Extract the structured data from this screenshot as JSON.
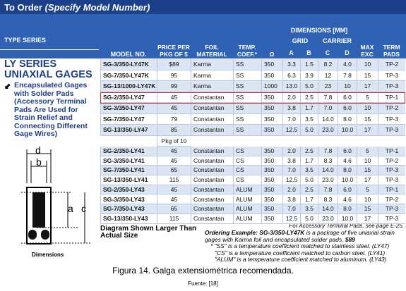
{
  "header": {
    "title": "To Order",
    "subtitle": "(Specify Model Number)"
  },
  "table": {
    "type_series": "TYPE SERIES",
    "columns": {
      "model": "MODEL NO.",
      "price": "PRICE PER PKG OF 5",
      "foil": "FOIL MATERIAL",
      "temp": "TEMP. COEF.*",
      "ohm": "Ω",
      "dimensions": "DIMENSIONS [MM]",
      "grid": "GRID",
      "carrier": "CARRIER",
      "a": "A",
      "b": "B",
      "c": "C",
      "d": "D",
      "max": "MAX EXC",
      "term": "TERM PADS"
    },
    "rows_pkg5": [
      [
        "SG-3/350-LY47K",
        "$89",
        "Karma",
        "SS",
        "350",
        "3.3",
        "1.5",
        "8.2",
        "4.0",
        "10",
        "TP-2"
      ],
      [
        "SG-7/350-LY47K",
        "95",
        "Karma",
        "SS",
        "350",
        "6.3",
        "3.9",
        "12",
        "7.8",
        "15",
        "TP-3"
      ],
      [
        "SG-13/1000-LY47K",
        "99",
        "Karma",
        "SS",
        "1000",
        "13.0",
        "5.0",
        "23",
        "10",
        "17",
        "TP-3"
      ],
      [
        "SG-2/350-LY47",
        "45",
        "Constantan",
        "SS",
        "350",
        "2.0",
        "2.5",
        "7.8",
        "6.0",
        "5",
        "TP-1"
      ],
      [
        "SG-3/350-LY47",
        "45",
        "Constantan",
        "SS",
        "350",
        "3.8",
        "1.7",
        "7.0",
        "6.0",
        "10",
        "TP-2"
      ],
      [
        "SG-7/350-LY47",
        "79",
        "Constantan",
        "SS",
        "350",
        "7.0",
        "3.5",
        "14.0",
        "8.0",
        "15",
        "TP-3"
      ],
      [
        "SG-13/350-LY47",
        "85",
        "Constantan",
        "SS",
        "350",
        "12.5",
        "5.0",
        "23.0",
        "10.0",
        "17",
        "TP-3"
      ]
    ],
    "pkg_note": "Pkg of 10",
    "rows_pkg10": [
      [
        "SG-2/350-LY41",
        "45",
        "Constantan",
        "CS",
        "350",
        "2.0",
        "2.5",
        "7.8",
        "6.0",
        "5",
        "TP-1"
      ],
      [
        "SG-3/350-LY41",
        "45",
        "Constantan",
        "CS",
        "350",
        "3.8",
        "1.7",
        "8.3",
        "4.6",
        "10",
        "TP-2"
      ],
      [
        "SG-7/350-LY41",
        "65",
        "Constantan",
        "CS",
        "350",
        "7.0",
        "3.5",
        "14.0",
        "8.0",
        "15",
        "TP-3"
      ],
      [
        "SG-13/350-LY41",
        "115",
        "Constantan",
        "CS",
        "350",
        "12.5",
        "5.0",
        "23.0",
        "10.0",
        "17",
        "TP-3"
      ],
      [
        "SG-2/350-LY43",
        "45",
        "Constantan",
        "ALUM",
        "350",
        "2.0",
        "2.5",
        "7.8",
        "6.0",
        "5",
        "TP-1"
      ],
      [
        "SG-3/350-LY43",
        "45",
        "Constantan",
        "ALUM",
        "350",
        "3.8",
        "1.7",
        "8.3",
        "4.6",
        "10",
        "TP-2"
      ],
      [
        "SG-7/350-LY43",
        "65",
        "Constantan",
        "ALUM",
        "350",
        "7.0",
        "3.5",
        "14.0",
        "8.0",
        "15",
        "TP-3"
      ],
      [
        "SG-13/350-LY43",
        "115",
        "Constantan",
        "ALUM",
        "350",
        "12.5",
        "5.0",
        "23.0",
        "10.0",
        "17",
        "TP-3"
      ]
    ]
  },
  "series": {
    "title_1": "LY SERIES",
    "title_2": "UNIAXIAL GAGES",
    "bullet": "Encapsulated Gages with Solder Pads (Accessory Terminal Pads Are Used for Strain Relief and Connecting Different Gage Wires)"
  },
  "diagram": {
    "d": "d",
    "b": "b",
    "a": "a",
    "c": "c",
    "label": "Dimensions",
    "note": "Diagram Shown Larger Than Actual Size"
  },
  "notes": {
    "accessory": "For Accessory Terminal Pads, see page E-25.",
    "ordering_label": "Ordering Example:",
    "ordering_model": "SG-3/350-LY47K",
    "ordering_text": "is a package of five uniaxial strain gages with Karma foil and encapsulated solder pads,",
    "ordering_price": "$89",
    "ss": "* \"SS\" is a temperature coefficient matched to stainless steel. (LY47)",
    "cs": "\"CS\" is a temperature coefficient matched to carbon steel. (LY41)",
    "alum": "\"ALUM\" is a temperature coefficient matched to aluminum. (LY43)"
  },
  "caption": "Figura 14. Galga extensiométrica recomendada.",
  "source": "Fuente: [18]"
}
